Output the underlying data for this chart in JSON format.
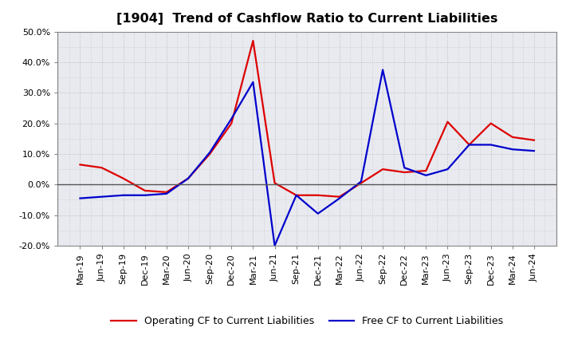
{
  "title": "[1904]  Trend of Cashflow Ratio to Current Liabilities",
  "x_labels": [
    "Mar-19",
    "Jun-19",
    "Sep-19",
    "Dec-19",
    "Mar-20",
    "Jun-20",
    "Sep-20",
    "Dec-20",
    "Mar-21",
    "Jun-21",
    "Sep-21",
    "Dec-21",
    "Mar-22",
    "Jun-22",
    "Sep-22",
    "Dec-22",
    "Mar-23",
    "Jun-23",
    "Sep-23",
    "Dec-23",
    "Mar-24",
    "Jun-24"
  ],
  "operating_cf": [
    6.5,
    5.5,
    2.0,
    -2.0,
    -2.5,
    2.0,
    10.0,
    20.0,
    47.0,
    0.5,
    -3.5,
    -3.5,
    -4.0,
    0.5,
    5.0,
    4.0,
    4.5,
    20.5,
    13.0,
    20.0,
    15.5,
    14.5
  ],
  "free_cf": [
    -4.5,
    -4.0,
    -3.5,
    -3.5,
    -3.0,
    2.0,
    10.5,
    21.5,
    33.5,
    -20.0,
    -3.5,
    -9.5,
    -4.5,
    1.0,
    37.5,
    5.5,
    3.0,
    5.0,
    13.0,
    13.0,
    11.5,
    11.0
  ],
  "operating_color": "#dd0000",
  "free_color": "#0000cc",
  "ylim": [
    -20.0,
    50.0
  ],
  "yticks": [
    -20.0,
    -10.0,
    0.0,
    10.0,
    20.0,
    30.0,
    40.0,
    50.0
  ],
  "background_color": "#ffffff",
  "plot_bg_color": "#e8eaf0",
  "grid_color": "#bbbbbb",
  "zero_line_color": "#555555",
  "legend_operating": "Operating CF to Current Liabilities",
  "legend_free": "Free CF to Current Liabilities",
  "title_fontsize": 11.5,
  "axis_fontsize": 8,
  "legend_fontsize": 9,
  "line_width": 1.6
}
